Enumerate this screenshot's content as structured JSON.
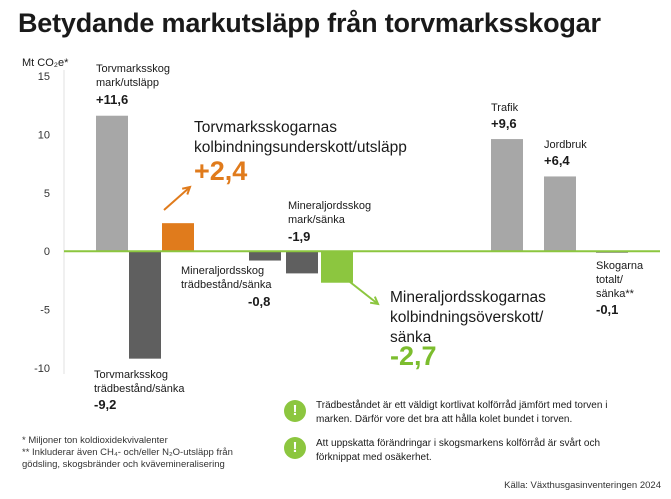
{
  "title": "Betydande markutsläpp från torvmarksskogar",
  "chart_data": {
    "type": "bar",
    "ylabel": "Mt CO₂e*",
    "ylim": [
      -10,
      15
    ],
    "yticks": [
      "15",
      "10",
      "5",
      "0",
      "-5",
      "-10"
    ],
    "bars": [
      {
        "key": "torv_mark",
        "label": "Torvmarksskog\nmark/utsläpp",
        "value": 11.6,
        "value_label": "+11,6",
        "color": "#a7a7a7"
      },
      {
        "key": "torv_trad",
        "label": "Torvmarksskog\nträdbestånd/sänka",
        "value": -9.2,
        "value_label": "-9,2",
        "color": "#5f5f5f"
      },
      {
        "key": "torv_netto",
        "label": "Torvmarksskogarnas\nkolbindningsunderskott/utsläpp",
        "value": 2.4,
        "value_label": "+2,4",
        "color": "#e07b1c"
      },
      {
        "key": "min_trad",
        "label": "Mineraljordsskog\nträdbestånd/sänka",
        "value": -0.8,
        "value_label": "-0,8",
        "color": "#5f5f5f"
      },
      {
        "key": "min_mark",
        "label": "Mineraljordsskog\nmark/sänka",
        "value": -1.9,
        "value_label": "-1,9",
        "color": "#5f5f5f"
      },
      {
        "key": "min_netto",
        "label": "Mineraljordsskogarnas\nkolbindningsöverskott/\nsänka",
        "value": -2.7,
        "value_label": "-2,7",
        "color": "#8cc63f"
      },
      {
        "key": "trafik",
        "label": "Trafik",
        "value": 9.6,
        "value_label": "+9,6",
        "color": "#a7a7a7"
      },
      {
        "key": "jordbruk",
        "label": "Jordbruk",
        "value": 6.4,
        "value_label": "+6,4",
        "color": "#a7a7a7"
      },
      {
        "key": "skog_tot",
        "label": "Skogarna\ntotalt/\nsänka**",
        "value": -0.1,
        "value_label": "-0,1",
        "color": "#5f5f5f"
      }
    ],
    "zero_line_color": "#8cc63f"
  },
  "footnotes": [
    "*  Miljoner ton koldioxidekvivalenter",
    "** Inkluderar även CH₄- och/eller N₂O-utsläpp från",
    "    gödsling, skogsbränder och kvävemineralisering"
  ],
  "info_notes": [
    {
      "icon": "!",
      "text": [
        "Trädbeståndet är ett väldigt kortlivat kolförråd jämfört med torven i",
        "marken. Därför vore det bra att hålla kolet bundet i torven."
      ]
    },
    {
      "icon": "!",
      "text": [
        "Att uppskatta förändringar i skogsmarkens kolförråd är svårt och",
        "förknippat med osäkerhet."
      ]
    }
  ],
  "source": "Källa: Växthusgasinventeringen 2024",
  "colors": {
    "orange": "#e07b1c",
    "green": "#8cc63f"
  }
}
